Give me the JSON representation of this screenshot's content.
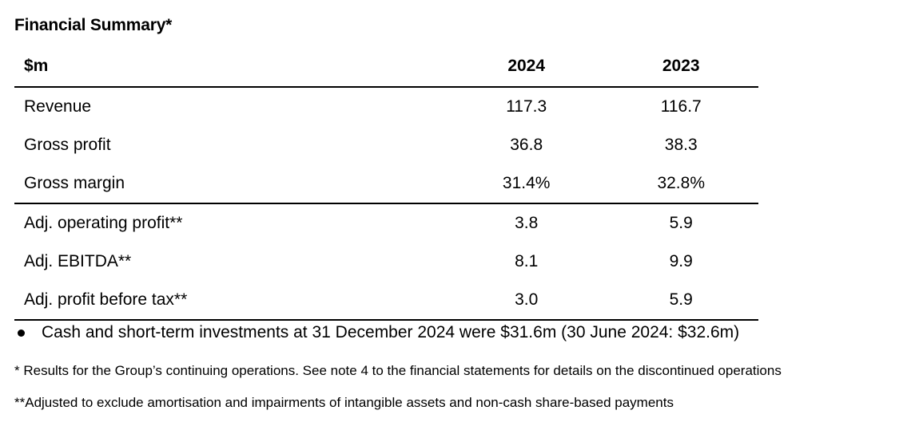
{
  "title": "Financial Summary*",
  "table": {
    "headers": [
      "$m",
      "2024",
      "2023"
    ],
    "rows": [
      {
        "label": "Revenue",
        "y2024": "117.3",
        "y2023": "116.7"
      },
      {
        "label": "Gross profit",
        "y2024": "36.8",
        "y2023": "38.3"
      },
      {
        "label": "Gross margin",
        "y2024": "31.4%",
        "y2023": "32.8%"
      },
      {
        "label": "Adj. operating profit**",
        "y2024": "3.8",
        "y2023": "5.9"
      },
      {
        "label": "Adj. EBITDA**",
        "y2024": "8.1",
        "y2023": "9.9"
      },
      {
        "label": "Adj. profit before tax**",
        "y2024": "3.0",
        "y2023": "5.9"
      }
    ]
  },
  "bullet": "Cash and short-term investments at 31 December 2024 were $31.6m (30 June 2024: $32.6m)",
  "footnotes": [
    "* Results for the Group’s continuing operations. See note 4 to the financial statements for details on the discontinued operations",
    "**Adjusted to exclude amortisation and impairments of intangible assets and non-cash share-based payments"
  ]
}
